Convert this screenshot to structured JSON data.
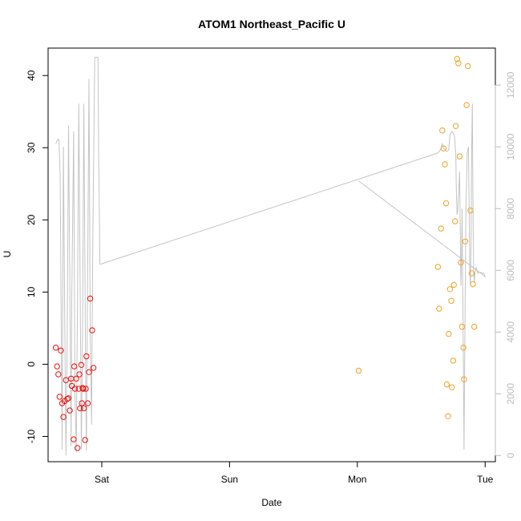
{
  "chart_data": {
    "type": "scatter",
    "title": "ATOM1 Northeast_Pacific U",
    "xlabel": "Date",
    "ylabel": "U",
    "x_ticks": [
      {
        "label": "Sat",
        "day": 1.0
      },
      {
        "label": "Sun",
        "day": 2.0
      },
      {
        "label": "Mon",
        "day": 3.0
      },
      {
        "label": "Tue",
        "day": 4.0
      }
    ],
    "xlim": [
      0.58,
      4.08
    ],
    "ylim": [
      -13.5,
      43.8
    ],
    "y_ticks": [
      -10,
      0,
      10,
      20,
      30,
      40
    ],
    "y2lim": [
      -200,
      13200
    ],
    "y2_ticks": [
      0,
      2000,
      4000,
      6000,
      8000,
      10000,
      12000
    ],
    "colors": {
      "series_red": "#ee1111",
      "series_orange": "#f5a020",
      "line_gray": "#c4c4c4",
      "axis": "#000000",
      "right_axis": "#bdbdbd"
    },
    "series": [
      {
        "color": "#ee1111",
        "points": [
          [
            0.64,
            2.3
          ],
          [
            0.65,
            -0.3
          ],
          [
            0.66,
            -1.4
          ],
          [
            0.67,
            -4.5
          ],
          [
            0.68,
            1.9
          ],
          [
            0.69,
            -5.4
          ],
          [
            0.7,
            -7.3
          ],
          [
            0.71,
            -5.1
          ],
          [
            0.72,
            -2.2
          ],
          [
            0.73,
            -4.8
          ],
          [
            0.74,
            -4.7
          ],
          [
            0.75,
            -6.4
          ],
          [
            0.76,
            -2.0
          ],
          [
            0.765,
            -3.0
          ],
          [
            0.78,
            -10.4
          ],
          [
            0.785,
            -0.3
          ],
          [
            0.79,
            -3.4
          ],
          [
            0.8,
            -2.0
          ],
          [
            0.81,
            -11.6
          ],
          [
            0.82,
            -3.4
          ],
          [
            0.825,
            -1.4
          ],
          [
            0.83,
            -6.1
          ],
          [
            0.84,
            -0.1
          ],
          [
            0.845,
            -5.4
          ],
          [
            0.85,
            -3.3
          ],
          [
            0.855,
            -3.4
          ],
          [
            0.86,
            -6.1
          ],
          [
            0.87,
            -10.5
          ],
          [
            0.875,
            -3.4
          ],
          [
            0.88,
            1.1
          ],
          [
            0.89,
            -5.4
          ],
          [
            0.9,
            -1.1
          ],
          [
            0.91,
            9.1
          ],
          [
            0.925,
            4.7
          ],
          [
            0.935,
            -0.5
          ]
        ]
      },
      {
        "color": "#f5a020",
        "points": [
          [
            3.01,
            -0.9
          ],
          [
            3.63,
            13.5
          ],
          [
            3.64,
            7.7
          ],
          [
            3.655,
            18.8
          ],
          [
            3.665,
            32.4
          ],
          [
            3.675,
            29.9
          ],
          [
            3.685,
            27.7
          ],
          [
            3.695,
            22.3
          ],
          [
            3.7,
            -2.8
          ],
          [
            3.71,
            -7.2
          ],
          [
            3.715,
            4.2
          ],
          [
            3.725,
            10.4
          ],
          [
            3.735,
            8.8
          ],
          [
            3.74,
            -3.2
          ],
          [
            3.75,
            0.5
          ],
          [
            3.755,
            11.0
          ],
          [
            3.765,
            19.8
          ],
          [
            3.77,
            33.0
          ],
          [
            3.78,
            42.3
          ],
          [
            3.79,
            41.7
          ],
          [
            3.8,
            28.8
          ],
          [
            3.81,
            14.1
          ],
          [
            3.82,
            5.2
          ],
          [
            3.83,
            2.3
          ],
          [
            3.835,
            -2.1
          ],
          [
            3.845,
            17.0
          ],
          [
            3.855,
            35.9
          ],
          [
            3.865,
            41.3
          ],
          [
            3.885,
            21.3
          ],
          [
            3.895,
            12.6
          ],
          [
            3.905,
            11.1
          ],
          [
            3.915,
            5.2
          ]
        ]
      }
    ],
    "line": {
      "points": [
        [
          0.64,
          10100
        ],
        [
          0.65,
          10200
        ],
        [
          0.66,
          10250
        ],
        [
          0.665,
          10200
        ],
        [
          0.675,
          9000
        ],
        [
          0.69,
          200
        ],
        [
          0.7,
          10000
        ],
        [
          0.715,
          2000
        ],
        [
          0.72,
          0
        ],
        [
          0.73,
          4000
        ],
        [
          0.74,
          10700
        ],
        [
          0.755,
          3000
        ],
        [
          0.76,
          300
        ],
        [
          0.765,
          5000
        ],
        [
          0.78,
          10500
        ],
        [
          0.79,
          2000
        ],
        [
          0.8,
          100
        ],
        [
          0.81,
          5000
        ],
        [
          0.82,
          11400
        ],
        [
          0.835,
          3000
        ],
        [
          0.84,
          200
        ],
        [
          0.85,
          4000
        ],
        [
          0.86,
          11400
        ],
        [
          0.875,
          2000
        ],
        [
          0.88,
          150
        ],
        [
          0.89,
          6000
        ],
        [
          0.9,
          12200
        ],
        [
          0.91,
          4000
        ],
        [
          0.92,
          1000
        ],
        [
          0.93,
          7000
        ],
        [
          0.945,
          12900
        ],
        [
          0.95,
          12900
        ],
        [
          0.97,
          12900
        ],
        [
          0.975,
          10000
        ],
        [
          0.985,
          6200
        ],
        [
          0.99,
          6200
        ],
        [
          3.63,
          9800
        ],
        [
          3.65,
          9900
        ],
        [
          3.665,
          10100
        ],
        [
          3.675,
          9950
        ],
        [
          3.69,
          9900
        ],
        [
          3.7,
          9850
        ],
        [
          3.715,
          9900
        ],
        [
          3.725,
          10400
        ],
        [
          3.74,
          10500
        ],
        [
          3.75,
          10450
        ],
        [
          3.76,
          10350
        ],
        [
          3.77,
          9800
        ],
        [
          3.775,
          8500
        ],
        [
          3.78,
          7800
        ],
        [
          3.785,
          7900
        ],
        [
          3.79,
          8300
        ],
        [
          3.8,
          9200
        ],
        [
          3.81,
          5500
        ],
        [
          3.815,
          6500
        ],
        [
          3.82,
          8000
        ],
        [
          3.83,
          3000
        ],
        [
          3.835,
          200
        ],
        [
          3.84,
          3000
        ],
        [
          3.85,
          8000
        ],
        [
          3.86,
          9800
        ],
        [
          3.87,
          10000
        ],
        [
          3.875,
          8000
        ],
        [
          3.88,
          6000
        ],
        [
          3.885,
          5500
        ],
        [
          3.89,
          7000
        ],
        [
          3.895,
          10000
        ],
        [
          3.9,
          11400
        ],
        [
          3.905,
          8000
        ],
        [
          3.91,
          6000
        ],
        [
          3.915,
          5600
        ],
        [
          3.92,
          5900
        ],
        [
          3.93,
          6100
        ],
        [
          3.935,
          6000
        ],
        [
          3.945,
          5900
        ],
        [
          3.95,
          5950
        ],
        [
          3.99,
          5900
        ],
        [
          4.0,
          5800
        ],
        [
          3.01,
          8900
        ]
      ]
    }
  }
}
